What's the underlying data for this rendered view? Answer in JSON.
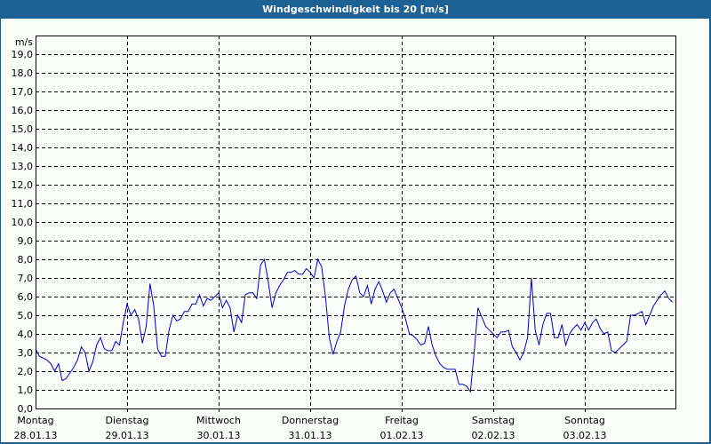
{
  "window": {
    "title": "Windgeschwindigkeit bis 20 [m/s]"
  },
  "colors": {
    "titlebar": "#1b6194",
    "background": "#fbfdfb",
    "line": "#0000c8",
    "grid": "#000000"
  },
  "chart_data": {
    "type": "line",
    "title": "Windgeschwindigkeit bis 20 [m/s]",
    "xlabel": "",
    "ylabel": "m/s",
    "ylim": [
      0,
      20
    ],
    "grid": true,
    "y_ticks": [
      "0,0",
      "1,0",
      "2,0",
      "3,0",
      "4,0",
      "5,0",
      "6,0",
      "7,0",
      "8,0",
      "9,0",
      "10,0",
      "11,0",
      "12,0",
      "13,0",
      "14,0",
      "15,0",
      "16,0",
      "17,0",
      "18,0",
      "19,0"
    ],
    "x_ticks": [
      {
        "day": "Montag",
        "date": "28.01.13"
      },
      {
        "day": "Dienstag",
        "date": "29.01.13"
      },
      {
        "day": "Mittwoch",
        "date": "30.01.13"
      },
      {
        "day": "Donnerstag",
        "date": "31.01.13"
      },
      {
        "day": "Freitag",
        "date": "01.02.13"
      },
      {
        "day": "Samstag",
        "date": "02.02.13"
      },
      {
        "day": "Sonntag",
        "date": "03.02.13"
      }
    ],
    "series": [
      {
        "name": "Windgeschwindigkeit",
        "unit": "m/s",
        "interval": "hourly",
        "values": [
          3.2,
          2.8,
          2.7,
          2.6,
          2.4,
          2.0,
          2.4,
          1.5,
          1.6,
          1.9,
          2.2,
          2.6,
          3.3,
          3.0,
          2.0,
          2.5,
          3.4,
          3.8,
          3.2,
          3.1,
          3.1,
          3.6,
          3.4,
          4.6,
          5.6,
          5.0,
          5.3,
          4.8,
          3.5,
          4.4,
          6.7,
          5.5,
          3.2,
          2.8,
          2.8,
          4.2,
          5.0,
          4.7,
          4.8,
          5.2,
          5.2,
          5.6,
          5.6,
          6.1,
          5.5,
          5.9,
          5.8,
          6.0,
          6.2,
          5.4,
          5.8,
          5.4,
          4.1,
          5.0,
          4.6,
          6.1,
          6.2,
          6.2,
          5.9,
          7.7,
          8.0,
          6.8,
          5.4,
          6.2,
          6.6,
          6.9,
          7.3,
          7.3,
          7.4,
          7.2,
          7.2,
          7.5,
          7.3,
          7.0,
          8.0,
          7.6,
          6.0,
          3.8,
          2.9,
          3.6,
          4.1,
          5.5,
          6.4,
          6.9,
          7.1,
          6.2,
          6.0,
          6.6,
          5.6,
          6.4,
          6.8,
          6.3,
          5.7,
          6.2,
          6.4,
          5.9,
          5.4,
          4.8,
          4.0,
          3.9,
          3.7,
          3.4,
          3.5,
          4.4,
          3.4,
          2.8,
          2.4,
          2.2,
          2.1,
          2.1,
          2.1,
          1.3,
          1.3,
          1.2,
          0.9,
          3.0,
          5.4,
          4.9,
          4.4,
          4.2,
          4.0,
          3.8,
          4.1,
          4.1,
          4.2,
          3.3,
          3.0,
          2.6,
          3.0,
          3.8,
          7.0,
          4.2,
          3.4,
          4.5,
          5.1,
          5.1,
          3.8,
          3.8,
          4.5,
          3.4,
          4.0,
          4.3,
          4.5,
          4.2,
          4.6,
          4.2,
          4.6,
          4.8,
          4.3,
          4.0,
          4.1,
          3.1,
          3.0,
          3.2,
          3.4,
          3.6,
          5.0,
          5.0,
          5.1,
          5.2,
          4.5,
          5.0,
          5.5,
          5.8,
          6.1,
          6.3,
          5.9,
          5.7
        ]
      }
    ]
  }
}
